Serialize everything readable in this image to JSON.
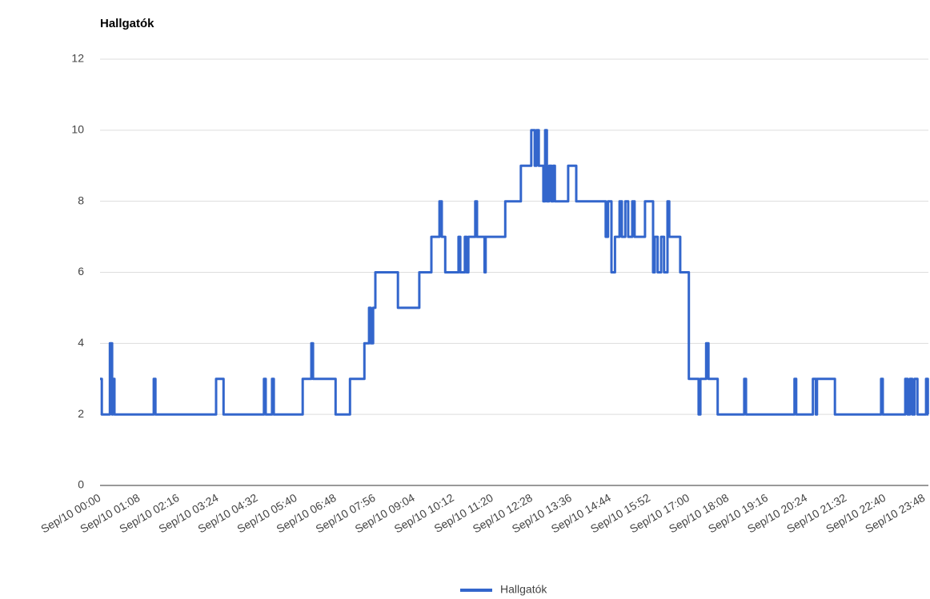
{
  "chart_data": {
    "type": "line",
    "title": "Hallgatók",
    "x": [
      "Sep/10 00:00",
      "Sep/10 00:03",
      "Sep/10 00:03",
      "Sep/10 00:17",
      "Sep/10 00:17",
      "Sep/10 00:21",
      "Sep/10 00:21",
      "Sep/10 00:22",
      "Sep/10 00:22",
      "Sep/10 00:25",
      "Sep/10 00:25",
      "Sep/10 01:33",
      "Sep/10 01:33",
      "Sep/10 01:36",
      "Sep/10 01:36",
      "Sep/10 03:21",
      "Sep/10 03:21",
      "Sep/10 03:34",
      "Sep/10 03:34",
      "Sep/10 04:44",
      "Sep/10 04:44",
      "Sep/10 04:47",
      "Sep/10 04:47",
      "Sep/10 04:58",
      "Sep/10 04:58",
      "Sep/10 05:01",
      "Sep/10 05:01",
      "Sep/10 05:51",
      "Sep/10 05:51",
      "Sep/10 06:06",
      "Sep/10 06:06",
      "Sep/10 06:09",
      "Sep/10 06:09",
      "Sep/10 06:48",
      "Sep/10 06:48",
      "Sep/10 07:13",
      "Sep/10 07:13",
      "Sep/10 07:38",
      "Sep/10 07:38",
      "Sep/10 07:46",
      "Sep/10 07:46",
      "Sep/10 07:49",
      "Sep/10 07:49",
      "Sep/10 07:53",
      "Sep/10 07:53",
      "Sep/10 07:57",
      "Sep/10 07:57",
      "Sep/10 08:36",
      "Sep/10 08:36",
      "Sep/10 09:13",
      "Sep/10 09:13",
      "Sep/10 09:34",
      "Sep/10 09:34",
      "Sep/10 09:48",
      "Sep/10 09:48",
      "Sep/10 09:52",
      "Sep/10 09:52",
      "Sep/10 09:58",
      "Sep/10 09:58",
      "Sep/10 10:21",
      "Sep/10 10:21",
      "Sep/10 10:24",
      "Sep/10 10:24",
      "Sep/10 10:32",
      "Sep/10 10:32",
      "Sep/10 10:35",
      "Sep/10 10:35",
      "Sep/10 10:38",
      "Sep/10 10:38",
      "Sep/10 10:50",
      "Sep/10 10:50",
      "Sep/10 10:53",
      "Sep/10 10:53",
      "Sep/10 11:06",
      "Sep/10 11:06",
      "Sep/10 11:08",
      "Sep/10 11:08",
      "Sep/10 11:42",
      "Sep/10 11:42",
      "Sep/10 12:09",
      "Sep/10 12:09",
      "Sep/10 12:27",
      "Sep/10 12:27",
      "Sep/10 12:33",
      "Sep/10 12:33",
      "Sep/10 12:36",
      "Sep/10 12:36",
      "Sep/10 12:40",
      "Sep/10 12:40",
      "Sep/10 12:48",
      "Sep/10 12:48",
      "Sep/10 12:51",
      "Sep/10 12:51",
      "Sep/10 12:54",
      "Sep/10 12:54",
      "Sep/10 12:58",
      "Sep/10 12:58",
      "Sep/10 13:02",
      "Sep/10 13:02",
      "Sep/10 13:05",
      "Sep/10 13:05",
      "Sep/10 13:08",
      "Sep/10 13:08",
      "Sep/10 13:31",
      "Sep/10 13:31",
      "Sep/10 13:45",
      "Sep/10 13:45",
      "Sep/10 14:36",
      "Sep/10 14:36",
      "Sep/10 14:40",
      "Sep/10 14:40",
      "Sep/10 14:46",
      "Sep/10 14:46",
      "Sep/10 14:52",
      "Sep/10 14:52",
      "Sep/10 15:00",
      "Sep/10 15:00",
      "Sep/10 15:04",
      "Sep/10 15:04",
      "Sep/10 15:10",
      "Sep/10 15:10",
      "Sep/10 15:15",
      "Sep/10 15:15",
      "Sep/10 15:22",
      "Sep/10 15:22",
      "Sep/10 15:26",
      "Sep/10 15:26",
      "Sep/10 15:44",
      "Sep/10 15:44",
      "Sep/10 15:58",
      "Sep/10 15:58",
      "Sep/10 16:01",
      "Sep/10 16:01",
      "Sep/10 16:06",
      "Sep/10 16:06",
      "Sep/10 16:12",
      "Sep/10 16:12",
      "Sep/10 16:17",
      "Sep/10 16:17",
      "Sep/10 16:23",
      "Sep/10 16:23",
      "Sep/10 16:26",
      "Sep/10 16:26",
      "Sep/10 16:45",
      "Sep/10 16:45",
      "Sep/10 17:00",
      "Sep/10 17:00",
      "Sep/10 17:17",
      "Sep/10 17:17",
      "Sep/10 17:20",
      "Sep/10 17:20",
      "Sep/10 17:30",
      "Sep/10 17:30",
      "Sep/10 17:34",
      "Sep/10 17:34",
      "Sep/10 17:50",
      "Sep/10 17:50",
      "Sep/10 18:36",
      "Sep/10 18:36",
      "Sep/10 18:39",
      "Sep/10 18:39",
      "Sep/10 20:03",
      "Sep/10 20:03",
      "Sep/10 20:06",
      "Sep/10 20:06",
      "Sep/10 20:35",
      "Sep/10 20:35",
      "Sep/10 20:40",
      "Sep/10 20:40",
      "Sep/10 20:42",
      "Sep/10 20:42",
      "Sep/10 21:13",
      "Sep/10 21:13",
      "Sep/10 22:33",
      "Sep/10 22:33",
      "Sep/10 22:36",
      "Sep/10 22:36",
      "Sep/10 23:15",
      "Sep/10 23:15",
      "Sep/10 23:19",
      "Sep/10 23:19",
      "Sep/10 23:23",
      "Sep/10 23:23",
      "Sep/10 23:27",
      "Sep/10 23:27",
      "Sep/10 23:31",
      "Sep/10 23:31",
      "Sep/10 23:36",
      "Sep/10 23:36",
      "Sep/10 23:51",
      "Sep/10 23:51",
      "Sep/10 23:54",
      "Sep/10 23:54",
      "Sep/10 23:55"
    ],
    "series": [
      {
        "name": "Hallgatók",
        "color": "#3366cc",
        "values": [
          3,
          3,
          2,
          2,
          4,
          4,
          2,
          2,
          3,
          3,
          2,
          2,
          3,
          3,
          2,
          2,
          3,
          3,
          2,
          2,
          3,
          3,
          2,
          2,
          3,
          3,
          2,
          2,
          3,
          3,
          4,
          4,
          3,
          3,
          2,
          2,
          3,
          3,
          4,
          4,
          5,
          5,
          4,
          4,
          5,
          5,
          6,
          6,
          5,
          5,
          6,
          6,
          7,
          7,
          8,
          8,
          7,
          7,
          6,
          6,
          7,
          7,
          6,
          6,
          7,
          7,
          6,
          6,
          7,
          7,
          8,
          8,
          7,
          7,
          6,
          6,
          7,
          7,
          8,
          8,
          9,
          9,
          10,
          10,
          9,
          9,
          10,
          10,
          9,
          9,
          8,
          8,
          10,
          10,
          8,
          8,
          9,
          9,
          8,
          8,
          9,
          9,
          8,
          8,
          9,
          9,
          8,
          8,
          7,
          7,
          8,
          8,
          6,
          6,
          7,
          7,
          8,
          8,
          7,
          7,
          8,
          8,
          7,
          7,
          8,
          8,
          7,
          7,
          8,
          8,
          6,
          6,
          7,
          7,
          6,
          6,
          7,
          7,
          6,
          6,
          8,
          8,
          7,
          7,
          6,
          6,
          3,
          3,
          2,
          2,
          3,
          3,
          4,
          4,
          3,
          3,
          2,
          2,
          3,
          3,
          2,
          2,
          3,
          3,
          2,
          2,
          3,
          3,
          2,
          2,
          3,
          3,
          2,
          2,
          3,
          3,
          2,
          2,
          3,
          3,
          2,
          2,
          3,
          3,
          2,
          2,
          3,
          3,
          2,
          2,
          3,
          3,
          2,
          2
        ]
      }
    ],
    "xlim": [
      "Sep/10 00:00",
      "Sep/10 23:55"
    ],
    "xticks": [
      "Sep/10 00:00",
      "Sep/10 01:08",
      "Sep/10 02:16",
      "Sep/10 03:24",
      "Sep/10 04:32",
      "Sep/10 05:40",
      "Sep/10 06:48",
      "Sep/10 07:56",
      "Sep/10 09:04",
      "Sep/10 10:12",
      "Sep/10 11:20",
      "Sep/10 12:28",
      "Sep/10 13:36",
      "Sep/10 14:44",
      "Sep/10 15:52",
      "Sep/10 17:00",
      "Sep/10 18:08",
      "Sep/10 19:16",
      "Sep/10 20:24",
      "Sep/10 21:32",
      "Sep/10 22:40",
      "Sep/10 23:48"
    ],
    "ylim": [
      0,
      12
    ],
    "yticks": [
      0,
      2,
      4,
      6,
      8,
      10,
      12
    ],
    "grid": true,
    "legend": "bottom"
  }
}
